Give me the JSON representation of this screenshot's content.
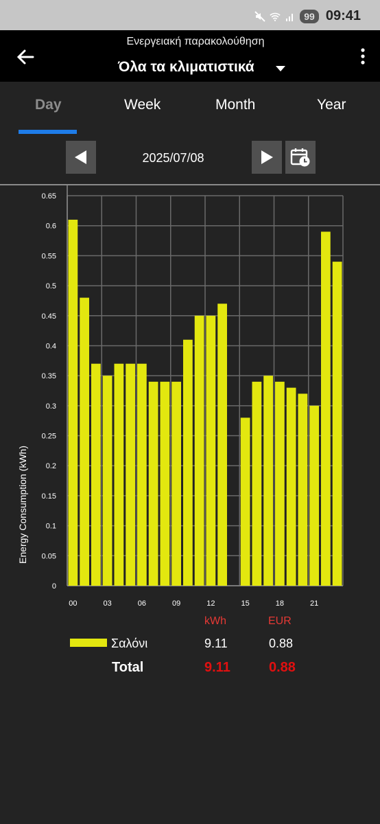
{
  "status": {
    "battery": "99",
    "time": "09:41"
  },
  "appbar": {
    "subtitle": "Ενεργειακή παρακολούθηση",
    "title": "Όλα τα κλιματιστικά"
  },
  "tabs": [
    {
      "label": "Day",
      "active": true
    },
    {
      "label": "Week",
      "active": false
    },
    {
      "label": "Month",
      "active": false
    },
    {
      "label": "Year",
      "active": false
    }
  ],
  "date": "2025/07/08",
  "colors": {
    "bar": "#e3e70f",
    "accent": "#1e7ce8",
    "highlight": "#e01010"
  },
  "chart_data": {
    "type": "bar",
    "ylabel": "Energy Consumption (kWh)",
    "ylim": [
      0,
      0.65
    ],
    "yticks": [
      "0",
      "0.05",
      "0.1",
      "0.15",
      "0.2",
      "0.25",
      "0.3",
      "0.35",
      "0.4",
      "0.45",
      "0.5",
      "0.55",
      "0.6",
      "0.65"
    ],
    "xtick_labels": [
      "00",
      "03",
      "06",
      "09",
      "12",
      "15",
      "18",
      "21"
    ],
    "categories": [
      "00",
      "01",
      "02",
      "03",
      "04",
      "05",
      "06",
      "07",
      "08",
      "09",
      "10",
      "11",
      "12",
      "13",
      "14",
      "15",
      "16",
      "17",
      "18",
      "19",
      "20",
      "21",
      "22",
      "23"
    ],
    "series": [
      {
        "name": "Σαλόνι",
        "values": [
          0.61,
          0.48,
          0.37,
          0.35,
          0.37,
          0.37,
          0.37,
          0.34,
          0.34,
          0.34,
          0.41,
          0.45,
          0.45,
          0.47,
          null,
          0.28,
          0.34,
          0.35,
          0.34,
          0.33,
          0.32,
          0.3,
          0.59,
          0.54
        ]
      }
    ],
    "grid": true
  },
  "legend": {
    "col_kwh": "kWh",
    "col_eur": "EUR",
    "items": [
      {
        "name": "Σαλόνι",
        "kwh": "9.11",
        "eur": "0.88"
      }
    ],
    "total_label": "Total",
    "total_kwh": "9.11",
    "total_eur": "0.88"
  }
}
